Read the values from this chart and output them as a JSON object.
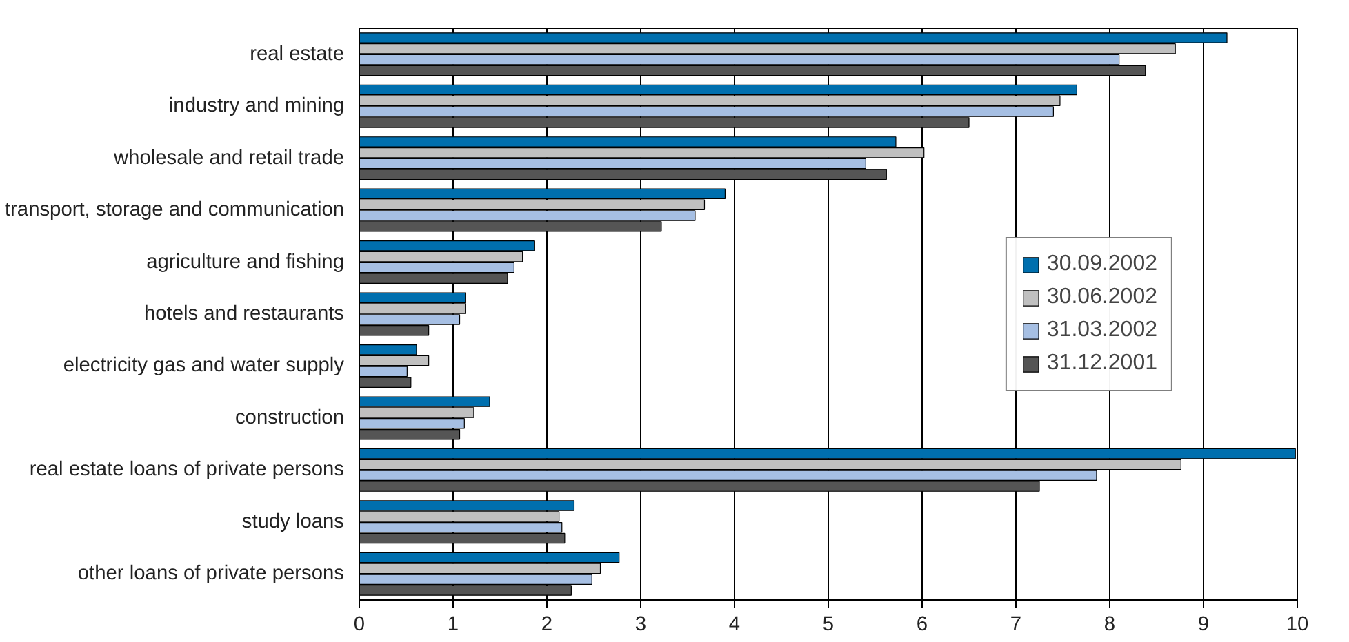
{
  "chart_data": {
    "type": "bar",
    "orientation": "horizontal",
    "categories": [
      "real estate",
      "industry and mining",
      "wholesale and retail trade",
      "transport, storage and communication",
      "agriculture and fishing",
      "hotels and restaurants",
      "electricity gas and water supply",
      "construction",
      "real estate loans of private persons",
      "study loans",
      "other loans of private persons"
    ],
    "series": [
      {
        "name": "30.09.2002",
        "color": "#006fae",
        "values": [
          9.25,
          7.65,
          5.72,
          3.9,
          1.87,
          1.13,
          0.61,
          1.39,
          9.98,
          2.29,
          2.77
        ]
      },
      {
        "name": "30.06.2002",
        "color": "#c0c0c0",
        "values": [
          8.7,
          7.47,
          6.02,
          3.68,
          1.74,
          1.13,
          0.74,
          1.22,
          8.76,
          2.13,
          2.57
        ]
      },
      {
        "name": "31.03.2002",
        "color": "#a6bfe3",
        "values": [
          8.1,
          7.4,
          5.4,
          3.58,
          1.65,
          1.07,
          0.51,
          1.12,
          7.86,
          2.16,
          2.48
        ]
      },
      {
        "name": "31.12.2001",
        "color": "#555555",
        "values": [
          8.38,
          6.5,
          5.62,
          3.22,
          1.58,
          0.74,
          0.55,
          1.07,
          7.25,
          2.19,
          2.26
        ]
      }
    ],
    "xlim": [
      0,
      10
    ],
    "xticks": [
      0,
      1,
      2,
      3,
      4,
      5,
      6,
      7,
      8,
      9,
      10
    ],
    "grid": "x",
    "legend": "right"
  }
}
